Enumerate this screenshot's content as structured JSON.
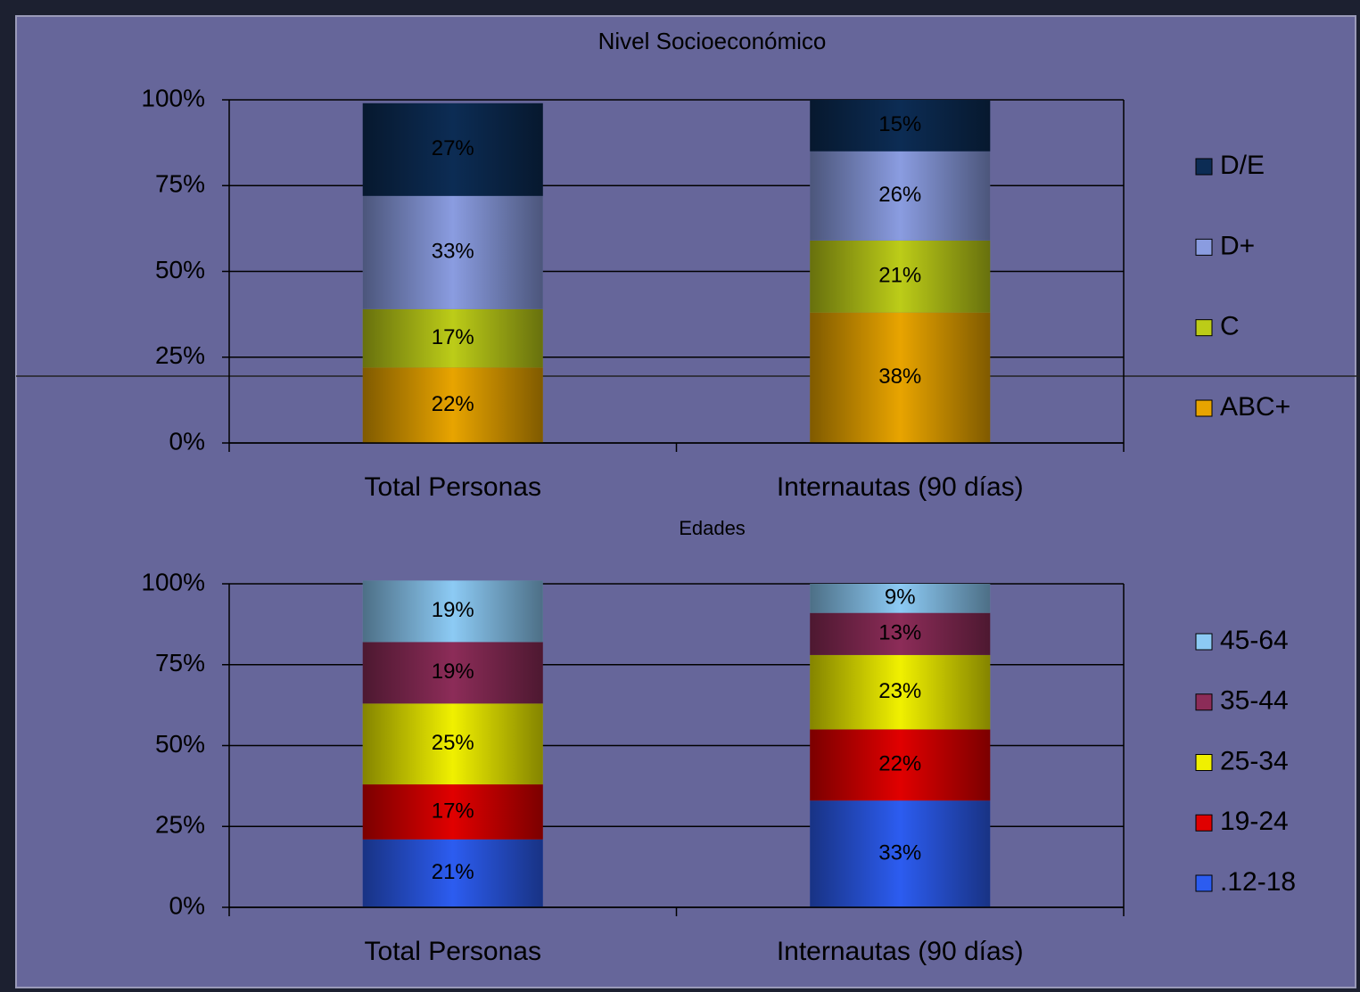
{
  "chart_data": [
    {
      "type": "stacked_bar",
      "title": "Nivel Socioeconómico",
      "categories": [
        "Total Personas",
        "Internautas (90 días)"
      ],
      "series": [
        {
          "name": "ABC+",
          "color": "#e8a400",
          "values": [
            22,
            38
          ],
          "value_labels": [
            "22%",
            "38%"
          ]
        },
        {
          "name": "C",
          "color": "#bccc18",
          "values": [
            17,
            21
          ],
          "value_labels": [
            "17%",
            "21%"
          ]
        },
        {
          "name": "D+",
          "color": "#8a9ce0",
          "values": [
            33,
            26
          ],
          "value_labels": [
            "33%",
            "26%"
          ]
        },
        {
          "name": "D/E",
          "color": "#0c2c54",
          "values": [
            27,
            15
          ],
          "value_labels": [
            "27%",
            "15%"
          ]
        }
      ],
      "ylim": [
        0,
        100
      ],
      "yticks": [
        {
          "value": 0,
          "label": "0%"
        },
        {
          "value": 25,
          "label": "25%"
        },
        {
          "value": 50,
          "label": "50%"
        },
        {
          "value": 75,
          "label": "75%"
        },
        {
          "value": 100,
          "label": "100%"
        }
      ],
      "grid": true,
      "legend": "right"
    },
    {
      "type": "stacked_bar",
      "title": "Edades",
      "categories": [
        "Total Personas",
        "Internautas (90 días)"
      ],
      "series": [
        {
          "name": ".12-18",
          "color": "#2c5cf0",
          "values": [
            21,
            33
          ],
          "value_labels": [
            "21%",
            "33%"
          ]
        },
        {
          "name": "19-24",
          "color": "#e00000",
          "values": [
            17,
            22
          ],
          "value_labels": [
            "17%",
            "22%"
          ]
        },
        {
          "name": "25-34",
          "color": "#f0f000",
          "values": [
            25,
            23
          ],
          "value_labels": [
            "25%",
            "23%"
          ]
        },
        {
          "name": "35-44",
          "color": "#8c2c58",
          "values": [
            19,
            13
          ],
          "value_labels": [
            "19%",
            "13%"
          ]
        },
        {
          "name": "45-64",
          "color": "#8ccaf4",
          "values": [
            19,
            9
          ],
          "value_labels": [
            "19%",
            "9%"
          ]
        }
      ],
      "ylim": [
        0,
        100
      ],
      "yticks": [
        {
          "value": 0,
          "label": "0%"
        },
        {
          "value": 25,
          "label": "25%"
        },
        {
          "value": 50,
          "label": "50%"
        },
        {
          "value": 75,
          "label": "75%"
        },
        {
          "value": 100,
          "label": "100%"
        }
      ],
      "grid": true,
      "legend": "right"
    }
  ]
}
